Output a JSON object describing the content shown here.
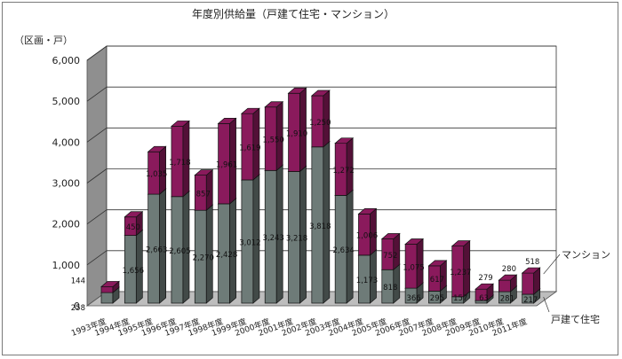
{
  "chart_data": {
    "type": "bar",
    "stacked": true,
    "three_d": true,
    "title": "年度別供給量（戸建て住宅・マンション）",
    "ylabel": "（区画・戸）",
    "ylim": [
      0,
      6000
    ],
    "yticks": [
      "0",
      "1,000",
      "2,000",
      "3,000",
      "4,000",
      "5,000",
      "6,000"
    ],
    "ytick_values": [
      0,
      1000,
      2000,
      3000,
      4000,
      5000,
      6000
    ],
    "grid": true,
    "categories": [
      "1993年度",
      "1994年度",
      "1995年度",
      "1996年度",
      "1997年度",
      "1998年度",
      "1999年度",
      "2000年度",
      "2001年度",
      "2002年度",
      "2003年度",
      "2004年度",
      "2005年度",
      "2006年度",
      "2007年度",
      "2008年度",
      "2009年度",
      "2010年度",
      "2011年度"
    ],
    "series": [
      {
        "name": "戸建て住宅",
        "color": "#6e7b78",
        "values": [
          258,
          1656,
          2663,
          2605,
          2270,
          2428,
          3012,
          3243,
          3218,
          3818,
          2634,
          1173,
          818,
          366,
          295,
          157,
          63,
          281,
          217
        ],
        "labels": [
          "258",
          "1,656",
          "2,663",
          "2,605",
          "2,270",
          "2,428",
          "3,012",
          "3,243",
          "3,218",
          "3,818",
          "2,634",
          "1,173",
          "818",
          "366",
          "295",
          "157",
          "63",
          "281",
          "217"
        ]
      },
      {
        "name": "マンション",
        "color": "#8a1a5c",
        "values": [
          144,
          450,
          1035,
          1718,
          857,
          1961,
          1619,
          1550,
          1910,
          1250,
          1272,
          1006,
          752,
          1075,
          617,
          1237,
          279,
          280,
          518
        ],
        "labels": [
          "144",
          "450",
          "1,035",
          "1,718",
          "857",
          "1,961",
          "1,619",
          "1,550",
          "1,910",
          "1,250",
          "1,272",
          "1,006",
          "752",
          "1,075",
          "617",
          "1,237",
          "279",
          "280",
          "518"
        ]
      }
    ],
    "legend": "right"
  }
}
